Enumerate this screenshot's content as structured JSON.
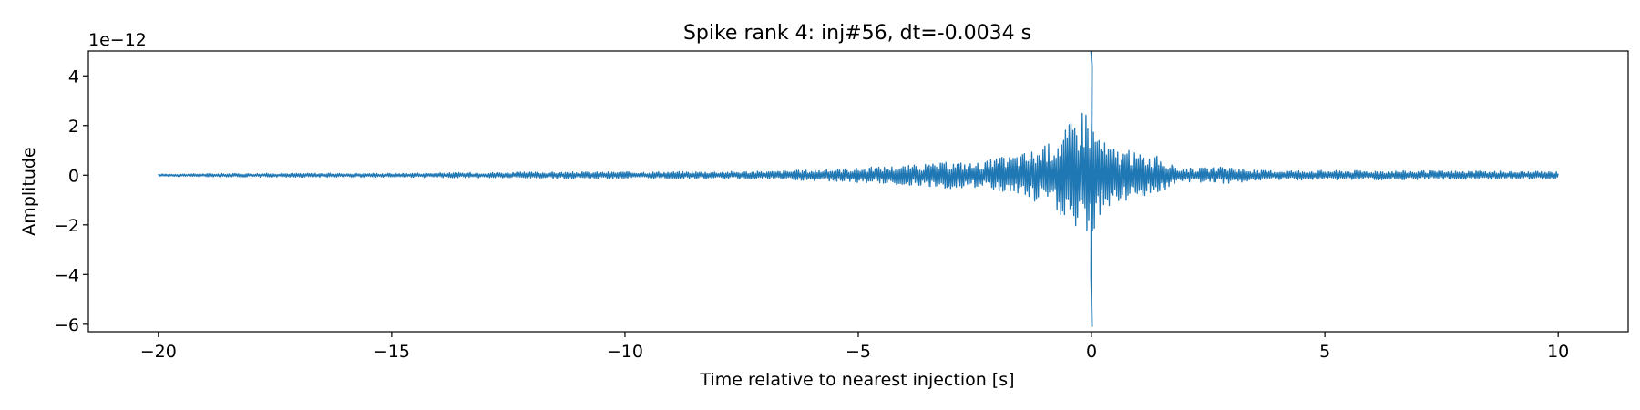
{
  "chart_data": {
    "type": "line",
    "title": "Spike rank 4: inj#56, dt=-0.0034 s",
    "xlabel": "Time relative to nearest injection [s]",
    "ylabel": "Amplitude",
    "y_offset_label": "1e−12",
    "xlim": [
      -21.5,
      11.5
    ],
    "ylim": [
      -6.3,
      5.0
    ],
    "x_ticks": [
      -20,
      -15,
      -10,
      -5,
      0,
      5,
      10
    ],
    "x_tick_labels": [
      "−20",
      "−15",
      "−10",
      "−5",
      "0",
      "5",
      "10"
    ],
    "y_ticks": [
      -6,
      -4,
      -2,
      0,
      2,
      4
    ],
    "y_tick_labels": [
      "−6",
      "−4",
      "−2",
      "0",
      "2",
      "4"
    ],
    "grid": false,
    "line_color": "#1f77b4",
    "series": [
      {
        "x_range": [
          -20,
          10
        ],
        "envelope": [
          [
            -20.0,
            0.05
          ],
          [
            -17.5,
            0.08
          ],
          [
            -15.0,
            0.08
          ],
          [
            -13.3,
            0.11
          ],
          [
            -12.0,
            0.13
          ],
          [
            -10.0,
            0.14
          ],
          [
            -8.5,
            0.15
          ],
          [
            -7.0,
            0.16
          ],
          [
            -5.5,
            0.25
          ],
          [
            -4.5,
            0.35
          ],
          [
            -3.5,
            0.45
          ],
          [
            -3.0,
            0.55
          ],
          [
            -2.5,
            0.5
          ],
          [
            -2.0,
            0.7
          ],
          [
            -1.5,
            0.9
          ],
          [
            -1.0,
            1.2
          ],
          [
            -0.6,
            1.8
          ],
          [
            -0.3,
            2.6
          ],
          [
            -0.1,
            3.0
          ],
          [
            0.1,
            2.0
          ],
          [
            0.3,
            1.3
          ],
          [
            0.6,
            1.1
          ],
          [
            1.0,
            0.9
          ],
          [
            1.5,
            0.75
          ],
          [
            1.8,
            0.3
          ],
          [
            2.5,
            0.3
          ],
          [
            3.0,
            0.35
          ],
          [
            3.5,
            0.2
          ],
          [
            5.0,
            0.2
          ],
          [
            7.0,
            0.18
          ],
          [
            10.0,
            0.15
          ]
        ],
        "spikes": [
          {
            "x": 0.0,
            "y": 5.0
          },
          {
            "x": 0.0,
            "y": 4.4
          },
          {
            "x": 0.0,
            "y": -4.0
          },
          {
            "x": 0.0,
            "y": -6.1
          }
        ]
      }
    ]
  }
}
